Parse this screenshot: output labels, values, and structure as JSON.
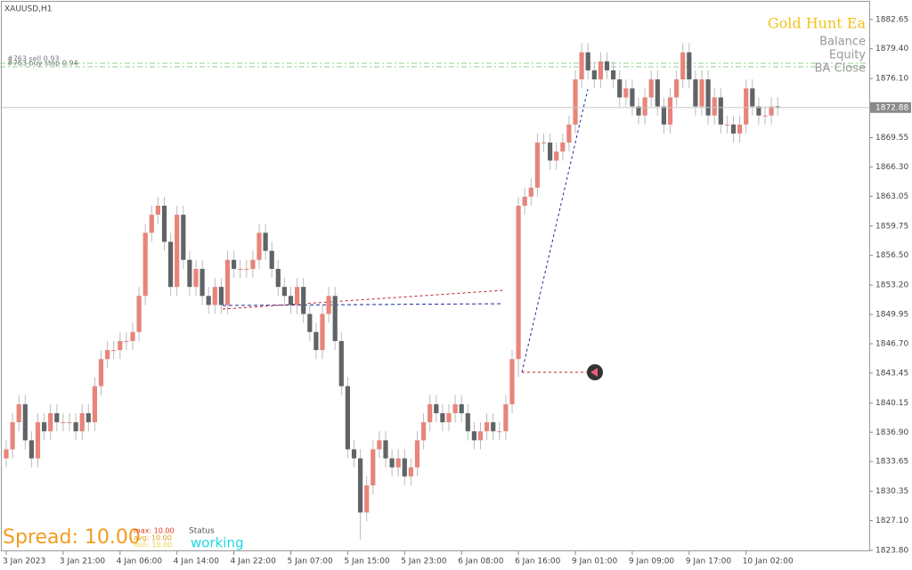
{
  "symbol": "XAUUSD,H1",
  "panel": {
    "title": "Gold Hunt Ea",
    "rows": [
      "Balance",
      "Equity",
      "BA Close"
    ]
  },
  "orders": [
    "#763 sell 0.93",
    "#763 buy stop 0.94"
  ],
  "spread": {
    "label": "Spread: 10.00",
    "max": "max: 10.00",
    "avg": "avg: 10.00",
    "min": "min: 10.00",
    "status_title": "Status",
    "status": "working"
  },
  "chart_data": {
    "type": "candlestick",
    "categories": [
      "3 Jan 2023",
      null,
      null,
      null,
      null,
      null,
      null,
      null,
      null,
      "3 Jan 21:00",
      null,
      null,
      null,
      null,
      null,
      null,
      null,
      null,
      "4 Jan 06:00",
      null,
      null,
      null,
      null,
      null,
      null,
      null,
      null,
      "4 Jan 14:00",
      null,
      null,
      null,
      null,
      null,
      null,
      null,
      null,
      "4 Jan 22:00",
      null,
      null,
      null,
      null,
      null,
      null,
      null,
      null,
      "5 Jan 07:00",
      null,
      null,
      null,
      null,
      null,
      null,
      null,
      null,
      "5 Jan 15:00",
      null,
      null,
      null,
      null,
      null,
      null,
      null,
      null,
      "5 Jan 23:00",
      null,
      null,
      null,
      null,
      null,
      null,
      null,
      null,
      "6 Jan 08:00",
      null,
      null,
      null,
      null,
      null,
      null,
      null,
      null,
      "6 Jan 16:00",
      null,
      null,
      null,
      null,
      null,
      null,
      null,
      null,
      "9 Jan 01:00",
      null,
      null,
      null,
      null,
      null,
      null,
      null,
      null,
      "9 Jan 09:00",
      null,
      null,
      null,
      null,
      null,
      null,
      null,
      null,
      "9 Jan 17:00",
      null,
      null,
      null,
      null,
      null,
      null,
      null,
      null,
      "10 Jan 02:00",
      null,
      null,
      null,
      null,
      null
    ],
    "open": [
      1834,
      1835,
      1838,
      1840,
      1836,
      1834,
      1838,
      1837,
      1839,
      1838,
      1838,
      1838,
      1837,
      1839,
      1838,
      1842,
      1845,
      1846,
      1846,
      1847,
      1847,
      1848,
      1852,
      1859,
      1861,
      1862,
      1858,
      1853,
      1861,
      1856,
      1853,
      1855,
      1852,
      1851,
      1853,
      1851,
      1856,
      1855,
      1855,
      1855,
      1856,
      1859,
      1857,
      1855,
      1853,
      1852,
      1851,
      1853,
      1850,
      1848,
      1846,
      1850,
      1852,
      1847,
      1842,
      1835,
      1834,
      1828,
      1831,
      1835,
      1836,
      1834,
      1833,
      1834,
      1832,
      1833,
      1836,
      1838,
      1840,
      1839,
      1838,
      1839,
      1840,
      1839,
      1837,
      1836,
      1837,
      1838,
      1837,
      1837,
      1840,
      1845,
      1862,
      1863,
      1864,
      1869,
      1869,
      1867,
      1868,
      1869,
      1871,
      1876,
      1879,
      1877,
      1876,
      1878,
      1877,
      1876,
      1874,
      1875,
      1873,
      1872,
      1874,
      1876,
      1873,
      1871,
      1874,
      1876,
      1879,
      1876,
      1873,
      1876,
      1872,
      1874,
      1871,
      1871,
      1870,
      1871,
      1875,
      1873,
      1872,
      1872,
      1873
    ],
    "high": [
      1836,
      1839,
      1841,
      1841,
      1837,
      1839,
      1839,
      1840,
      1840,
      1839,
      1839,
      1839,
      1840,
      1840,
      1843,
      1846,
      1847,
      1847,
      1848,
      1848,
      1849,
      1853,
      1860,
      1862,
      1863,
      1863,
      1859,
      1862,
      1862,
      1857,
      1856,
      1856,
      1853,
      1854,
      1854,
      1857,
      1857,
      1856,
      1856,
      1857,
      1860,
      1860,
      1858,
      1856,
      1854,
      1853,
      1854,
      1854,
      1851,
      1849,
      1851,
      1853,
      1853,
      1848,
      1843,
      1836,
      1835,
      1832,
      1836,
      1837,
      1837,
      1835,
      1835,
      1835,
      1834,
      1837,
      1839,
      1841,
      1841,
      1840,
      1840,
      1841,
      1841,
      1840,
      1838,
      1838,
      1839,
      1839,
      1838,
      1841,
      1846,
      1863,
      1864,
      1865,
      1870,
      1870,
      1870,
      1869,
      1870,
      1872,
      1877,
      1880,
      1880,
      1878,
      1879,
      1879,
      1878,
      1877,
      1876,
      1876,
      1874,
      1875,
      1877,
      1877,
      1874,
      1875,
      1877,
      1880,
      1880,
      1877,
      1877,
      1877,
      1875,
      1875,
      1872,
      1872,
      1872,
      1876,
      1876,
      1874,
      1873,
      1874,
      1874
    ],
    "low": [
      1833,
      1834,
      1837,
      1835,
      1833,
      1833,
      1836,
      1836,
      1837,
      1837,
      1837,
      1836,
      1836,
      1837,
      1837,
      1841,
      1844,
      1845,
      1845,
      1846,
      1846,
      1847,
      1851,
      1858,
      1860,
      1857,
      1852,
      1852,
      1855,
      1852,
      1852,
      1851,
      1850,
      1850,
      1850,
      1850,
      1854,
      1854,
      1854,
      1854,
      1855,
      1856,
      1854,
      1852,
      1851,
      1850,
      1850,
      1849,
      1847,
      1845,
      1845,
      1849,
      1846,
      1841,
      1834,
      1833,
      1825,
      1827,
      1830,
      1834,
      1833,
      1832,
      1832,
      1831,
      1831,
      1832,
      1835,
      1837,
      1838,
      1837,
      1837,
      1838,
      1838,
      1836,
      1835,
      1835,
      1836,
      1836,
      1836,
      1836,
      1839,
      1843,
      1861,
      1862,
      1863,
      1868,
      1866,
      1866,
      1867,
      1868,
      1870,
      1875,
      1876,
      1875,
      1875,
      1876,
      1875,
      1873,
      1873,
      1872,
      1871,
      1871,
      1873,
      1872,
      1870,
      1870,
      1873,
      1875,
      1875,
      1872,
      1872,
      1871,
      1871,
      1870,
      1870,
      1869,
      1869,
      1870,
      1872,
      1871,
      1871,
      1871,
      1872
    ],
    "close": [
      1835,
      1838,
      1840,
      1836,
      1834,
      1838,
      1837,
      1839,
      1838,
      1838,
      1838,
      1837,
      1839,
      1838,
      1842,
      1845,
      1846,
      1846,
      1847,
      1847,
      1848,
      1852,
      1859,
      1861,
      1862,
      1858,
      1853,
      1861,
      1856,
      1853,
      1855,
      1852,
      1851,
      1853,
      1851,
      1856,
      1855,
      1855,
      1855,
      1856,
      1859,
      1857,
      1855,
      1853,
      1852,
      1851,
      1853,
      1850,
      1848,
      1846,
      1850,
      1852,
      1847,
      1842,
      1835,
      1834,
      1828,
      1831,
      1835,
      1836,
      1834,
      1833,
      1834,
      1832,
      1833,
      1836,
      1838,
      1840,
      1839,
      1838,
      1839,
      1840,
      1839,
      1837,
      1836,
      1837,
      1838,
      1837,
      1837,
      1840,
      1845,
      1862,
      1863,
      1864,
      1869,
      1869,
      1867,
      1868,
      1869,
      1871,
      1876,
      1879,
      1877,
      1876,
      1878,
      1877,
      1876,
      1874,
      1875,
      1873,
      1872,
      1874,
      1876,
      1873,
      1871,
      1874,
      1876,
      1879,
      1876,
      1873,
      1876,
      1872,
      1874,
      1871,
      1871,
      1870,
      1871,
      1875,
      1873,
      1872,
      1872,
      1873,
      1872.88
    ],
    "up_color": "#e8847a",
    "down_color": "#5f6468",
    "last_price": 1872.88,
    "ylim": [
      1823.6,
      1884.8
    ],
    "yticks": [
      1882.65,
      {
        "value": 1879.4,
        "label": "1879.40"
      },
      {
        "value": 1876.1,
        "label": "1876.10"
      },
      1869.55,
      {
        "value": 1866.3,
        "label": "1866.30"
      },
      1863.05,
      1859.75,
      {
        "value": 1856.5,
        "label": "1856.50"
      },
      {
        "value": 1853.2,
        "label": "1853.20"
      },
      1849.95,
      {
        "value": 1846.7,
        "label": "1846.70"
      },
      1843.45,
      1840.15,
      {
        "value": 1836.9,
        "label": "1836.90"
      },
      1833.65,
      1830.35,
      {
        "value": 1827.1,
        "label": "1827.10"
      },
      {
        "value": 1823.8,
        "label": "1823.80"
      }
    ],
    "grid": false
  }
}
